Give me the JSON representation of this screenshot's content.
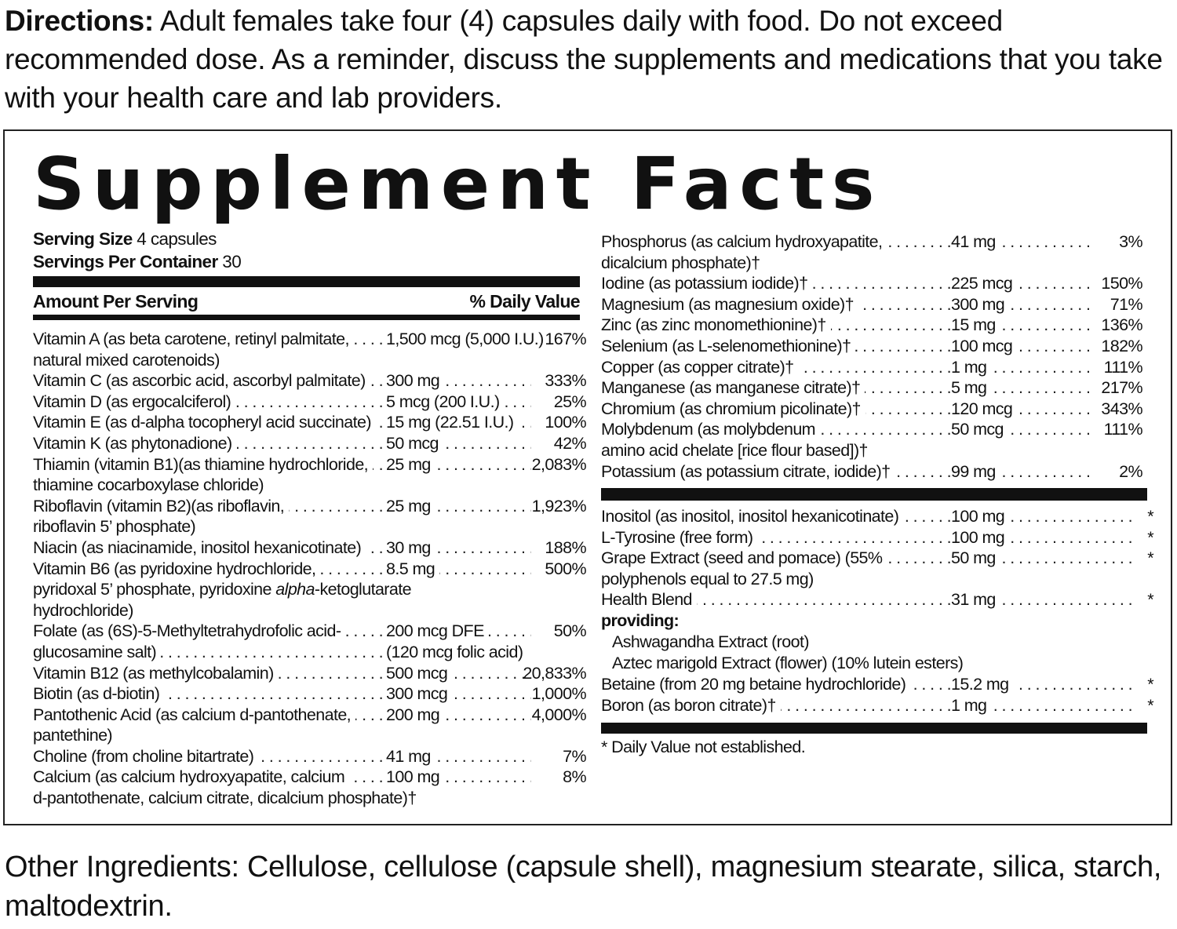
{
  "directions": {
    "label": "Directions:",
    "text": " Adult females  take four (4) capsules daily with food. Do not exceed recommended dose. As a reminder, discuss the supplements and medications that you take with your health care and lab  providers."
  },
  "facts": {
    "title": "Supplement Facts",
    "serving_size_label": "Serving Size",
    "serving_size_value": " 4 capsules",
    "servings_per_container_label": "Servings Per Container",
    "servings_per_container_value": " 30",
    "amount_header": "Amount Per Serving",
    "dv_header": "% Daily Value",
    "left_nutrients": [
      {
        "name": "Vitamin A (as beta carotene, retinyl palmitate,",
        "cont": "natural mixed carotenoids)",
        "amount": "1,500 mcg (5,000 I.U.)",
        "dv": "167%"
      },
      {
        "name": "Vitamin C (as ascorbic acid, ascorbyl palmitate)",
        "cont": "",
        "amount": "300 mg",
        "dv": "333%"
      },
      {
        "name": "Vitamin D (as ergocalciferol)",
        "cont": "",
        "amount": "5 mcg (200 I.U.)",
        "dv": "25%"
      },
      {
        "name": "Vitamin E (as d-alpha tocopheryl acid succinate)",
        "cont": "",
        "amount": "15 mg (22.51 I.U.)",
        "dv": "100%"
      },
      {
        "name": "Vitamin K (as phytonadione)",
        "cont": "",
        "amount": "50 mcg",
        "dv": "42%"
      },
      {
        "name": "Thiamin (vitamin B1)(as thiamine hydrochloride,",
        "cont": "thiamine cocarboxylase chloride)",
        "amount": "25 mg",
        "dv": "2,083%"
      },
      {
        "name": "Riboflavin (vitamin B2)(as riboflavin,",
        "cont": "riboflavin 5’ phosphate)",
        "amount": "25 mg",
        "dv": "1,923%"
      },
      {
        "name": "Niacin (as niacinamide, inositol hexanicotinate)",
        "cont": "",
        "amount": "30 mg",
        "dv": "188%"
      },
      {
        "name": "Vitamin B6 (as pyridoxine hydrochloride,",
        "cont": "pyridoxal 5’ phosphate, pyridoxine alpha-ketoglutarate",
        "cont2": "hydrochloride)",
        "amount": "8.5 mg",
        "dv": "500%"
      },
      {
        "name": "Folate (as (6S)-5-Methyltetrahydrofolic acid-",
        "cont": "glucosamine salt)",
        "cont_amount": "(120 mcg folic acid)",
        "amount": "200 mcg DFE",
        "dv": "50%"
      },
      {
        "name": "Vitamin B12 (as methylcobalamin)",
        "cont": "",
        "amount": "500 mcg",
        "dv": "20,833%"
      },
      {
        "name": "Biotin (as d-biotin)",
        "cont": "",
        "amount": "300 mcg",
        "dv": "1,000%"
      },
      {
        "name": "Pantothenic Acid (as calcium d-pantothenate,",
        "cont": "pantethine)",
        "amount": "200 mg",
        "dv": "4,000%"
      },
      {
        "name": "Choline (from choline bitartrate)",
        "cont": "",
        "amount": "41 mg",
        "dv": "7%"
      },
      {
        "name": "Calcium (as calcium hydroxyapatite, calcium",
        "cont": "d-pantothenate, calcium citrate, dicalcium phosphate)†",
        "amount": "100 mg",
        "dv": "8%"
      }
    ],
    "right_nutrients": [
      {
        "name": "Phosphorus (as calcium hydroxyapatite,",
        "cont": "dicalcium phosphate)†",
        "amount": "41 mg",
        "dv": "3%"
      },
      {
        "name": "Iodine (as potassium iodide)†",
        "cont": "",
        "amount": "225 mcg",
        "dv": "150%"
      },
      {
        "name": "Magnesium (as magnesium oxide)†",
        "cont": "",
        "amount": "300 mg",
        "dv": "71%"
      },
      {
        "name": "Zinc (as zinc monomethionine)†",
        "cont": "",
        "amount": "15 mg",
        "dv": "136%"
      },
      {
        "name": "Selenium (as L-selenomethionine)†",
        "cont": "",
        "amount": "100 mcg",
        "dv": "182%"
      },
      {
        "name": "Copper (as copper citrate)†",
        "cont": "",
        "amount": "1 mg",
        "dv": "111%"
      },
      {
        "name": "Manganese (as manganese citrate)†",
        "cont": "",
        "amount": "5 mg",
        "dv": "217%"
      },
      {
        "name": "Chromium (as chromium picolinate)†",
        "cont": "",
        "amount": "120 mcg",
        "dv": "343%"
      },
      {
        "name": "Molybdenum (as molybdenum",
        "cont": "amino acid chelate [rice flour based])†",
        "amount": "50 mcg",
        "dv": "111%"
      },
      {
        "name": "Potassium (as potassium citrate, iodide)†",
        "cont": "",
        "amount": "99 mg",
        "dv": "2%"
      }
    ],
    "other_nutrients": [
      {
        "name": "Inositol (as inositol, inositol hexanicotinate)",
        "cont": "",
        "amount": "100 mg",
        "dv": "*"
      },
      {
        "name": "L-Tyrosine (free form)",
        "cont": "",
        "amount": "100 mg",
        "dv": "*"
      },
      {
        "name": "Grape Extract (seed and pomace) (55%",
        "cont": "polyphenols equal to 27.5 mg)",
        "amount": "50 mg",
        "dv": "*"
      },
      {
        "name": "Health Blend",
        "cont": "",
        "amount": "31 mg",
        "dv": "*"
      }
    ],
    "providing_label": "providing:",
    "providing_items": [
      "Ashwagandha Extract (root)",
      "Aztec marigold Extract (flower) (10% lutein esters)"
    ],
    "after_nutrients": [
      {
        "name": "Betaine (from 20 mg betaine hydrochloride)",
        "cont": "",
        "amount": "15.2 mg",
        "dv": "*"
      },
      {
        "name": "Boron (as boron citrate)†",
        "cont": "",
        "amount": "1 mg",
        "dv": "*"
      }
    ],
    "footnote": "* Daily Value not established."
  },
  "other_ingredients": "Other Ingredients:  Cellulose, cellulose (capsule shell), magnesium stearate, silica, starch, maltodextrin."
}
